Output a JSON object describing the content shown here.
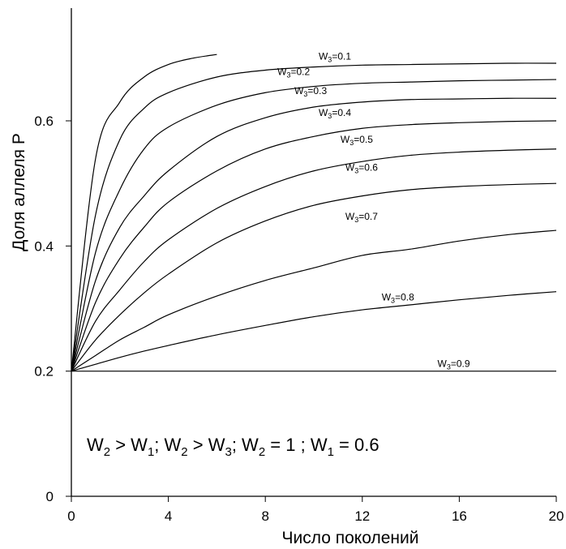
{
  "chart_data": {
    "type": "line",
    "xlabel": "Число поколений",
    "ylabel": "Доля аллеля P",
    "xlim": [
      0,
      20
    ],
    "ylim": [
      0,
      0.8
    ],
    "x_ticks": [
      "0",
      "4",
      "8",
      "12",
      "16",
      "20"
    ],
    "y_ticks": [
      "0",
      "0.2",
      "0.4",
      "0.6"
    ],
    "grid": false,
    "annotation": {
      "parts": [
        {
          "t": "W",
          "s": ""
        },
        {
          "t": "2",
          "s": "sub"
        },
        {
          "t": " > W",
          "s": ""
        },
        {
          "t": "1",
          "s": "sub"
        },
        {
          "t": "; W",
          "s": ""
        },
        {
          "t": "2",
          "s": "sub"
        },
        {
          "t": " > W",
          "s": ""
        },
        {
          "t": "3",
          "s": "sub"
        },
        {
          "t": "; W",
          "s": ""
        },
        {
          "t": "2",
          "s": "sub"
        },
        {
          "t": " = 1 ; W",
          "s": ""
        },
        {
          "t": "1",
          "s": "sub"
        },
        {
          "t": " = 0.6",
          "s": ""
        }
      ]
    },
    "series": [
      {
        "label": "0.1",
        "x": [
          0,
          1,
          2,
          3,
          4,
          5,
          6
        ],
        "y": [
          0.2,
          0.54,
          0.63,
          0.67,
          0.69,
          0.7,
          0.706
        ],
        "lx": 10.2,
        "ly": 0.698
      },
      {
        "label": "0.2",
        "x": [
          0,
          1,
          2,
          3,
          4,
          6,
          8,
          10,
          12,
          14,
          16,
          18,
          20
        ],
        "y": [
          0.2,
          0.45,
          0.57,
          0.62,
          0.645,
          0.67,
          0.681,
          0.686,
          0.689,
          0.69,
          0.691,
          0.692,
          0.692
        ],
        "lx": 8.5,
        "ly": 0.673
      },
      {
        "label": "0.3",
        "x": [
          0,
          1,
          2,
          3,
          4,
          6,
          8,
          10,
          12,
          14,
          16,
          18,
          20
        ],
        "y": [
          0.2,
          0.39,
          0.49,
          0.555,
          0.59,
          0.625,
          0.645,
          0.655,
          0.66,
          0.662,
          0.664,
          0.665,
          0.666
        ],
        "lx": 9.2,
        "ly": 0.643
      },
      {
        "label": "0.4",
        "x": [
          0,
          1,
          2,
          3,
          4,
          6,
          8,
          10,
          12,
          14,
          16,
          18,
          20
        ],
        "y": [
          0.2,
          0.345,
          0.43,
          0.48,
          0.52,
          0.575,
          0.605,
          0.622,
          0.63,
          0.634,
          0.635,
          0.636,
          0.636
        ],
        "lx": 10.2,
        "ly": 0.608
      },
      {
        "label": "0.5",
        "x": [
          0,
          1,
          2,
          3,
          4,
          6,
          8,
          10,
          12,
          14,
          16,
          18,
          20
        ],
        "y": [
          0.2,
          0.31,
          0.38,
          0.43,
          0.47,
          0.52,
          0.555,
          0.575,
          0.588,
          0.594,
          0.597,
          0.599,
          0.6
        ],
        "lx": 11.1,
        "ly": 0.565
      },
      {
        "label": "0.6",
        "x": [
          0,
          1,
          2,
          3,
          4,
          6,
          8,
          10,
          12,
          14,
          16,
          18,
          20
        ],
        "y": [
          0.2,
          0.28,
          0.33,
          0.375,
          0.41,
          0.46,
          0.495,
          0.52,
          0.535,
          0.545,
          0.55,
          0.553,
          0.555
        ],
        "lx": 11.3,
        "ly": 0.52
      },
      {
        "label": "0.7",
        "x": [
          0,
          1,
          2,
          3,
          4,
          6,
          8,
          10,
          12,
          14,
          16,
          18,
          20
        ],
        "y": [
          0.2,
          0.25,
          0.29,
          0.325,
          0.355,
          0.405,
          0.44,
          0.465,
          0.48,
          0.49,
          0.495,
          0.498,
          0.5
        ],
        "lx": 11.3,
        "ly": 0.442
      },
      {
        "label": "0.8",
        "x": [
          0,
          1,
          2,
          3,
          4,
          6,
          8,
          10,
          12,
          14,
          16,
          18,
          20
        ],
        "y": [
          0.2,
          0.225,
          0.25,
          0.27,
          0.29,
          0.32,
          0.345,
          0.365,
          0.385,
          0.395,
          0.408,
          0.418,
          0.425
        ],
        "lx": 12.8,
        "ly": 0.313
      },
      {
        "label": "0.9",
        "x": [
          0,
          1,
          2,
          3,
          4,
          6,
          8,
          10,
          12,
          14,
          16,
          18,
          20
        ],
        "y": [
          0.2,
          0.211,
          0.222,
          0.232,
          0.241,
          0.258,
          0.273,
          0.287,
          0.298,
          0.306,
          0.314,
          0.321,
          0.327
        ],
        "lx": 15.1,
        "ly": 0.207
      },
      {
        "label": "",
        "x": [
          0,
          20
        ],
        "y": [
          0.2,
          0.2
        ],
        "lx": null,
        "ly": null
      }
    ],
    "label_prefix": "W",
    "label_sub": "3",
    "label_eq": "="
  }
}
